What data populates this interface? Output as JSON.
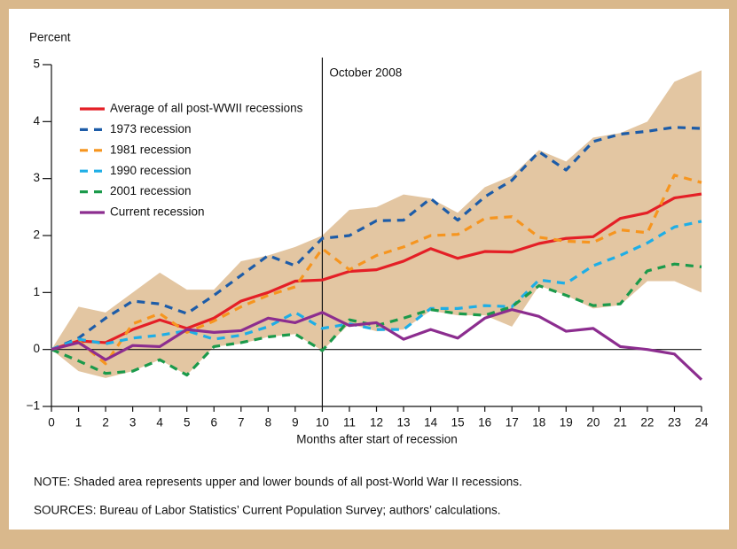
{
  "chart_data": {
    "type": "line",
    "y_label": "Percent",
    "x_label": "Months after start of recession",
    "annotation": {
      "text": "October 2008",
      "x": 10
    },
    "note": "NOTE: Shaded area represents upper and lower bounds of all post-World War II recessions.",
    "source": "SOURCES: Bureau of Labor Statistics’ Current Population Survey; authors’ calculations.",
    "x": [
      0,
      1,
      2,
      3,
      4,
      5,
      6,
      7,
      8,
      9,
      10,
      11,
      12,
      13,
      14,
      15,
      16,
      17,
      18,
      19,
      20,
      21,
      22,
      23,
      24
    ],
    "xlim": [
      0,
      24
    ],
    "xticks": [
      0,
      1,
      2,
      3,
      4,
      5,
      6,
      7,
      8,
      9,
      10,
      11,
      12,
      13,
      14,
      15,
      16,
      17,
      18,
      19,
      20,
      21,
      22,
      23,
      24
    ],
    "ylim": [
      -1,
      5
    ],
    "yticks": [
      {
        "value": -1,
        "label": "−1"
      },
      0,
      1,
      2,
      3,
      4,
      5
    ],
    "legend": "upper left",
    "band": {
      "color": "#e3c6a2",
      "upper": [
        0,
        0.75,
        0.65,
        1.0,
        1.35,
        1.05,
        1.05,
        1.55,
        1.65,
        1.8,
        2.0,
        2.45,
        2.5,
        2.72,
        2.65,
        2.4,
        2.85,
        3.05,
        3.5,
        3.3,
        3.72,
        3.8,
        4.0,
        4.7,
        4.9
      ],
      "lower": [
        0,
        -0.38,
        -0.5,
        -0.38,
        -0.18,
        -0.45,
        0.05,
        0.1,
        0.22,
        0.27,
        -0.02,
        0.45,
        0.32,
        0.35,
        0.68,
        0.6,
        0.6,
        0.4,
        1.12,
        0.95,
        0.72,
        0.78,
        1.2,
        1.2,
        1.0
      ]
    },
    "series": [
      {
        "name": "Average of all post-WWII recessions",
        "color": "#e41f26",
        "dashed": false,
        "values": [
          0,
          0.15,
          0.12,
          0.35,
          0.52,
          0.37,
          0.55,
          0.85,
          1.0,
          1.2,
          1.22,
          1.37,
          1.4,
          1.55,
          1.77,
          1.6,
          1.72,
          1.71,
          1.86,
          1.95,
          1.98,
          2.3,
          2.4,
          2.66,
          2.73
        ]
      },
      {
        "name": "1973 recession",
        "color": "#1d5ca8",
        "dashed": true,
        "values": [
          0,
          0.2,
          0.55,
          0.85,
          0.8,
          0.63,
          0.95,
          1.3,
          1.65,
          1.47,
          1.95,
          2.0,
          2.26,
          2.27,
          2.65,
          2.27,
          2.68,
          2.97,
          3.47,
          3.15,
          3.65,
          3.78,
          3.83,
          3.9,
          3.88
        ]
      },
      {
        "name": "1981 recession",
        "color": "#f6951f",
        "dashed": true,
        "values": [
          0,
          0.15,
          -0.25,
          0.45,
          0.63,
          0.3,
          0.5,
          0.75,
          0.95,
          1.1,
          1.77,
          1.4,
          1.65,
          1.8,
          2.0,
          2.02,
          2.3,
          2.33,
          1.97,
          1.9,
          1.88,
          2.1,
          2.05,
          3.06,
          2.93
        ]
      },
      {
        "name": "1990 recession",
        "color": "#1eaee6",
        "dashed": true,
        "values": [
          0,
          0.18,
          0.1,
          0.2,
          0.25,
          0.33,
          0.18,
          0.25,
          0.4,
          0.65,
          0.37,
          0.45,
          0.35,
          0.35,
          0.72,
          0.72,
          0.77,
          0.75,
          1.22,
          1.16,
          1.47,
          1.65,
          1.87,
          2.15,
          2.25
        ]
      },
      {
        "name": "2001 recession",
        "color": "#1b9a4b",
        "dashed": true,
        "values": [
          0,
          -0.2,
          -0.42,
          -0.38,
          -0.18,
          -0.45,
          0.05,
          0.12,
          0.22,
          0.27,
          -0.02,
          0.52,
          0.42,
          0.55,
          0.7,
          0.63,
          0.6,
          0.75,
          1.12,
          0.95,
          0.77,
          0.8,
          1.38,
          1.5,
          1.45
        ]
      },
      {
        "name": "Current recession",
        "color": "#8c2d8f",
        "dashed": false,
        "values": [
          0,
          0.12,
          -0.18,
          0.07,
          0.05,
          0.35,
          0.3,
          0.33,
          0.55,
          0.47,
          0.65,
          0.42,
          0.47,
          0.18,
          0.35,
          0.2,
          0.55,
          0.7,
          0.58,
          0.32,
          0.37,
          0.05,
          0.0,
          -0.08,
          -0.53
        ]
      }
    ]
  }
}
